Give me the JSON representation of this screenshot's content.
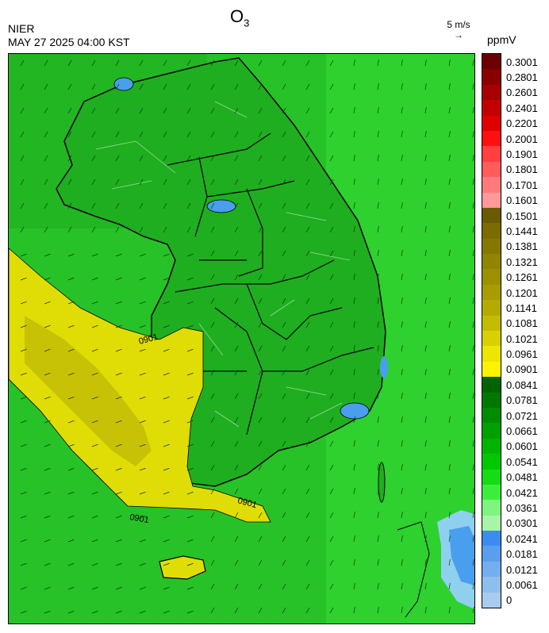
{
  "header": {
    "agency": "NIER",
    "datetime": "MAY 27 2025 04:00 KST",
    "title_main": "O",
    "title_sub": "3",
    "wind_ref_label": "5 m/s",
    "wind_ref_arrow": "→",
    "unit": "ppmV"
  },
  "map": {
    "contour_label": "0901",
    "regions": {
      "background_green": "#27c227",
      "land_green": "#1fae1f",
      "bright_green": "#2ed12e",
      "yellow_zone": "#dfdd05",
      "dark_yellow": "#c8c206",
      "blue_patch": "#4a9eee",
      "light_blue": "#8fd0ef"
    }
  },
  "colorbar": {
    "labels": [
      "0.3001",
      "0.2801",
      "0.2601",
      "0.2401",
      "0.2201",
      "0.2001",
      "0.1901",
      "0.1801",
      "0.1701",
      "0.1601",
      "0.1501",
      "0.1441",
      "0.1381",
      "0.1321",
      "0.1261",
      "0.1201",
      "0.1141",
      "0.1081",
      "0.1021",
      "0.0961",
      "0.0901",
      "0.0841",
      "0.0781",
      "0.0721",
      "0.0661",
      "0.0601",
      "0.0541",
      "0.0481",
      "0.0421",
      "0.0361",
      "0.0301",
      "0.0241",
      "0.0181",
      "0.0121",
      "0.0061",
      "0"
    ],
    "colors": [
      "#6b0000",
      "#8a0000",
      "#a60000",
      "#c30000",
      "#de0000",
      "#ff1010",
      "#ff4040",
      "#ff5c5c",
      "#ff7a7a",
      "#ff9a9a",
      "#6b5a00",
      "#7a6c00",
      "#857800",
      "#908400",
      "#9c9000",
      "#a89c00",
      "#b4aa00",
      "#c4bc00",
      "#d8d000",
      "#ece600",
      "#fff200",
      "#006400",
      "#007800",
      "#008c00",
      "#00a000",
      "#00b400",
      "#00c800",
      "#16dc16",
      "#3cee3c",
      "#7ef57e",
      "#a8f5a8",
      "#3c8cf0",
      "#5a9eee",
      "#74aeee",
      "#8ebeee",
      "#a8ccee"
    ]
  }
}
